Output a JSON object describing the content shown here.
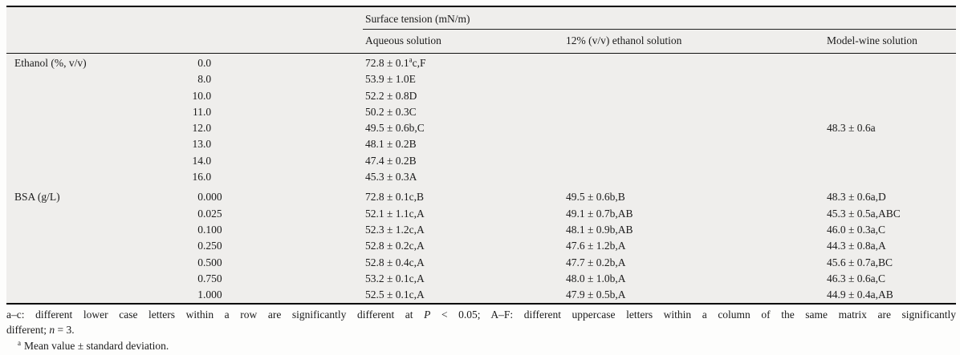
{
  "colors": {
    "table_background": "#efeeec",
    "page_background": "#fdfdfc",
    "text": "#1b1b1b",
    "rule": "#000000"
  },
  "table": {
    "header": {
      "group_label": "Surface tension (mN/m)",
      "columns": [
        "Aqueous solution",
        "12% (v/v) ethanol solution",
        "Model-wine solution"
      ]
    },
    "sections": [
      {
        "label": "Ethanol (%, v/v)",
        "rows": [
          {
            "conc": "0.0",
            "aqueous": "72.8 ± 0.1^a^c,F",
            "ethanol12": "",
            "modelwine": ""
          },
          {
            "conc": "8.0",
            "aqueous": "53.9 ± 1.0E",
            "ethanol12": "",
            "modelwine": ""
          },
          {
            "conc": "10.0",
            "aqueous": "52.2 ± 0.8D",
            "ethanol12": "",
            "modelwine": ""
          },
          {
            "conc": "11.0",
            "aqueous": "50.2 ± 0.3C",
            "ethanol12": "",
            "modelwine": ""
          },
          {
            "conc": "12.0",
            "aqueous": "49.5 ± 0.6b,C",
            "ethanol12": "",
            "modelwine": "48.3 ± 0.6a"
          },
          {
            "conc": "13.0",
            "aqueous": "48.1 ± 0.2B",
            "ethanol12": "",
            "modelwine": ""
          },
          {
            "conc": "14.0",
            "aqueous": "47.4 ± 0.2B",
            "ethanol12": "",
            "modelwine": ""
          },
          {
            "conc": "16.0",
            "aqueous": "45.3 ± 0.3A",
            "ethanol12": "",
            "modelwine": ""
          }
        ]
      },
      {
        "label": "BSA (g/L)",
        "rows": [
          {
            "conc": "0.000",
            "aqueous": "72.8 ± 0.1c,B",
            "ethanol12": "49.5 ± 0.6b,B",
            "modelwine": "48.3 ± 0.6a,D"
          },
          {
            "conc": "0.025",
            "aqueous": "52.1 ± 1.1c,A",
            "ethanol12": "49.1 ± 0.7b,AB",
            "modelwine": "45.3 ± 0.5a,ABC"
          },
          {
            "conc": "0.100",
            "aqueous": "52.3 ± 1.2c,A",
            "ethanol12": "48.1 ± 0.9b,AB",
            "modelwine": "46.0 ± 0.3a,C"
          },
          {
            "conc": "0.250",
            "aqueous": "52.8 ± 0.2c,A",
            "ethanol12": "47.6 ± 1.2b,A",
            "modelwine": "44.3 ± 0.8a,A"
          },
          {
            "conc": "0.500",
            "aqueous": "52.8 ± 0.4c,A",
            "ethanol12": "47.7 ± 0.2b,A",
            "modelwine": "45.6 ± 0.7a,BC"
          },
          {
            "conc": "0.750",
            "aqueous": "53.2 ± 0.1c,A",
            "ethanol12": "48.0 ± 1.0b,A",
            "modelwine": "46.3 ± 0.6a,C"
          },
          {
            "conc": "1.000",
            "aqueous": "52.5 ± 0.1c,A",
            "ethanol12": "47.9 ± 0.5b,A",
            "modelwine": "44.9 ± 0.4a,AB"
          }
        ]
      }
    ]
  },
  "footnotes": {
    "note1_line1": [
      {
        "text": "a–c: different lower case letters within a row are significantly different at "
      },
      {
        "text": "P",
        "italic": true
      },
      {
        "text": " < 0.05; A–F: different uppercase letters within a column of the same matrix are significantly"
      }
    ],
    "note1_line2": [
      {
        "text": "different; "
      },
      {
        "text": "n",
        "italic": true
      },
      {
        "text": " = 3."
      }
    ],
    "note2": [
      {
        "text": "a",
        "sup": true
      },
      {
        "text": "Mean value ± standard deviation."
      }
    ]
  }
}
